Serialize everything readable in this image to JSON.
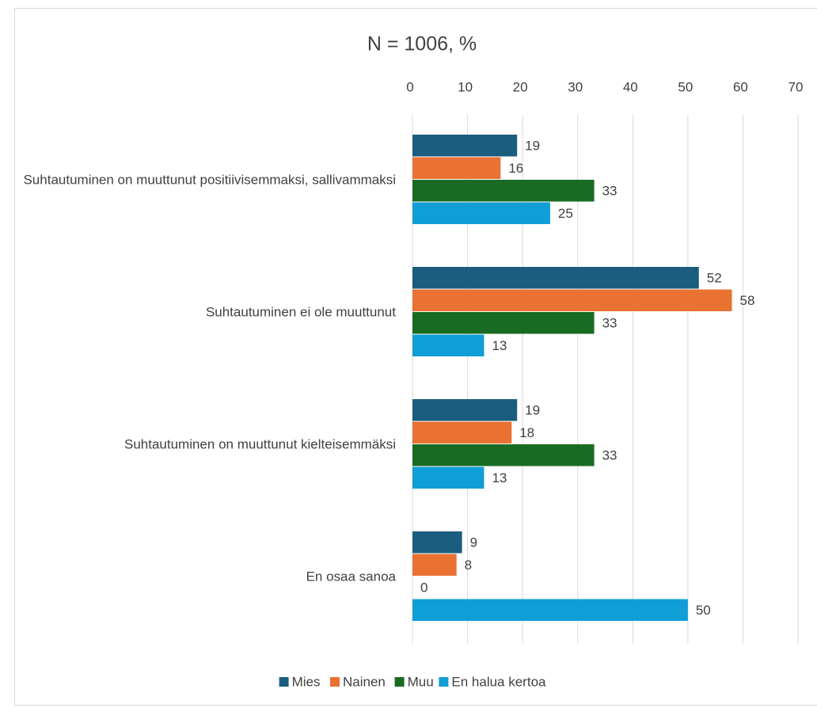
{
  "chart_data": {
    "type": "bar",
    "orientation": "horizontal",
    "title": "N = 1006, %",
    "categories": [
      "Suhtautuminen on muuttunut positiivisemmaksi, sallivammaksi",
      "Suhtautuminen ei ole muuttunut",
      "Suhtautuminen on muuttunut kielteisemmäksi",
      "En osaa sanoa"
    ],
    "series": [
      {
        "name": "Mies",
        "color": "#1a5d7e",
        "values": [
          19,
          52,
          19,
          9
        ]
      },
      {
        "name": "Nainen",
        "color": "#e97132",
        "values": [
          16,
          58,
          18,
          8
        ]
      },
      {
        "name": "Muu",
        "color": "#196b24",
        "values": [
          33,
          33,
          33,
          0
        ]
      },
      {
        "name": "En halua kertoa",
        "color": "#0f9ed5",
        "values": [
          25,
          13,
          13,
          50
        ]
      }
    ],
    "xlim": [
      0,
      70
    ],
    "xticks": [
      0,
      10,
      20,
      30,
      40,
      50,
      60,
      70
    ],
    "grid": true,
    "legend": "bottom"
  }
}
